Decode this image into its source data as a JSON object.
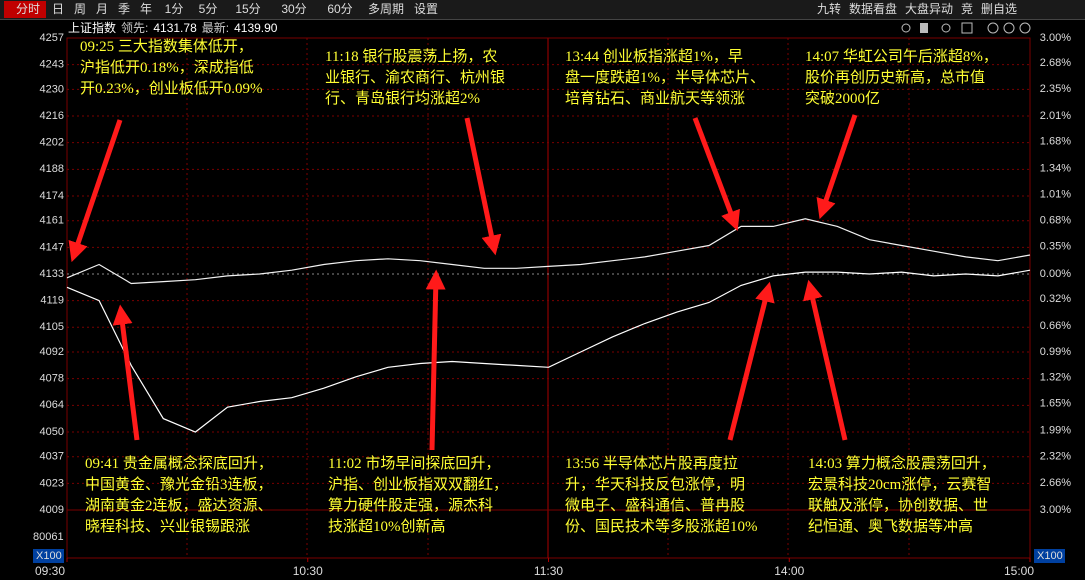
{
  "toolbar": {
    "tabs": [
      "分时",
      "日",
      "周",
      "月",
      "季",
      "年",
      "1分",
      "5分",
      "15分",
      "30分",
      "60分",
      "多周期",
      "设置"
    ],
    "right": [
      "九转",
      "数据看盘",
      "大盘异动",
      "竞",
      "删自选"
    ]
  },
  "header": {
    "name": "上证指数",
    "lead_label": "领先:",
    "lead": "4131.78",
    "latest_label": "最新:",
    "latest": "4139.90"
  },
  "volume": {
    "max": "80061",
    "unit": "X100"
  },
  "chart_data": {
    "type": "line",
    "x": [
      0,
      8,
      16,
      24,
      32,
      40,
      48,
      56,
      64,
      72,
      80,
      88,
      96,
      104,
      112,
      120,
      128,
      136,
      144,
      152,
      160,
      168,
      176,
      184,
      192,
      200,
      208,
      216,
      224,
      232,
      240
    ],
    "xlim": [
      0,
      240
    ],
    "xticks": [
      {
        "value": 0,
        "label": "09:30"
      },
      {
        "value": 60,
        "label": "10:30"
      },
      {
        "value": 120,
        "label": "11:30"
      },
      {
        "value": 180,
        "label": "14:00"
      },
      {
        "value": 240,
        "label": "15:00"
      }
    ],
    "ylim": [
      4009,
      4257
    ],
    "yticks": [
      4257,
      4243,
      4230,
      4216,
      4202,
      4188,
      4174,
      4161,
      4147,
      4133,
      4119,
      4105,
      4092,
      4078,
      4064,
      4050,
      4037,
      4023,
      4009
    ],
    "y2lim": [
      -3,
      3
    ],
    "y2ticks": [
      {
        "value": 3,
        "label": "3.00%"
      },
      {
        "value": 2.68,
        "label": "2.68%"
      },
      {
        "value": 2.35,
        "label": "2.35%"
      },
      {
        "value": 2.01,
        "label": "2.01%"
      },
      {
        "value": 1.68,
        "label": "1.68%"
      },
      {
        "value": 1.34,
        "label": "1.34%"
      },
      {
        "value": 1.01,
        "label": "1.01%"
      },
      {
        "value": 0.68,
        "label": "0.68%"
      },
      {
        "value": 0.35,
        "label": "0.35%"
      },
      {
        "value": 0,
        "label": "0.00%"
      },
      {
        "value": -0.32,
        "label": "0.32%"
      },
      {
        "value": -0.66,
        "label": "0.66%"
      },
      {
        "value": -0.99,
        "label": "0.99%"
      },
      {
        "value": -1.32,
        "label": "1.32%"
      },
      {
        "value": -1.65,
        "label": "1.65%"
      },
      {
        "value": -1.99,
        "label": "1.99%"
      },
      {
        "value": -2.32,
        "label": "2.32%"
      },
      {
        "value": -2.66,
        "label": "2.66%"
      },
      {
        "value": -3,
        "label": "3.00%"
      }
    ],
    "grid": true,
    "series": [
      {
        "color": "#ffffff",
        "values": [
          4126,
          4119,
          4085,
          4057,
          4050,
          4063,
          4066,
          4068,
          4073,
          4079,
          4084,
          4086,
          4087,
          4086,
          4085,
          4084,
          4092,
          4100,
          4107,
          4113,
          4118,
          4127,
          4132,
          4134,
          4134,
          4133,
          4134,
          4132,
          4133,
          4132,
          4135
        ]
      },
      {
        "color": "#f2f2f2",
        "values": [
          4131,
          4138,
          4128,
          4129,
          4130,
          4132,
          4133,
          4135,
          4138,
          4140,
          4141,
          4140,
          4138,
          4136,
          4136,
          4137,
          4138,
          4140,
          4142,
          4145,
          4148,
          4158,
          4158,
          4162,
          4158,
          4151,
          4148,
          4145,
          4142,
          4140,
          4143
        ]
      }
    ]
  },
  "annotations": [
    {
      "lines": [
        "09:25 三大指数集体低开，",
        "沪指低开0.18%，深成指低",
        "开0.23%，创业板低开0.09%"
      ]
    },
    {
      "lines": [
        "11:18 银行股震荡上扬，农",
        "业银行、渝农商行、杭州银",
        "行、青岛银行均涨超2%"
      ]
    },
    {
      "lines": [
        "13:44 创业板指涨超1%，早",
        "盘一度跌超1%，半导体芯片、",
        "培育钻石、商业航天等领涨"
      ]
    },
    {
      "lines": [
        "14:07 华虹公司午后涨超8%，",
        "股价再创历史新高，总市值",
        "突破2000亿"
      ]
    },
    {
      "lines": [
        "09:41 贵金属概念探底回升，",
        "中国黄金、豫光金铅3连板，",
        "湖南黄金2连板，盛达资源、",
        "晓程科技、兴业银锡跟涨"
      ]
    },
    {
      "lines": [
        "11:02 市场早间探底回升，",
        "沪指、创业板指双双翻红，",
        "算力硬件股走强，源杰科",
        "技涨超10%创新高"
      ]
    },
    {
      "lines": [
        "13:56 半导体芯片股再度拉",
        "升，华天科技反包涨停，明",
        "微电子、盛科通信、普冉股",
        "份、国民技术等多股涨超10%"
      ]
    },
    {
      "lines": [
        "14:03 算力概念股震荡回升，",
        "宏景科技20cm涨停，云赛智",
        "联触及涨停，协创数据、世",
        "纪恒通、奥飞数据等冲高"
      ]
    }
  ]
}
